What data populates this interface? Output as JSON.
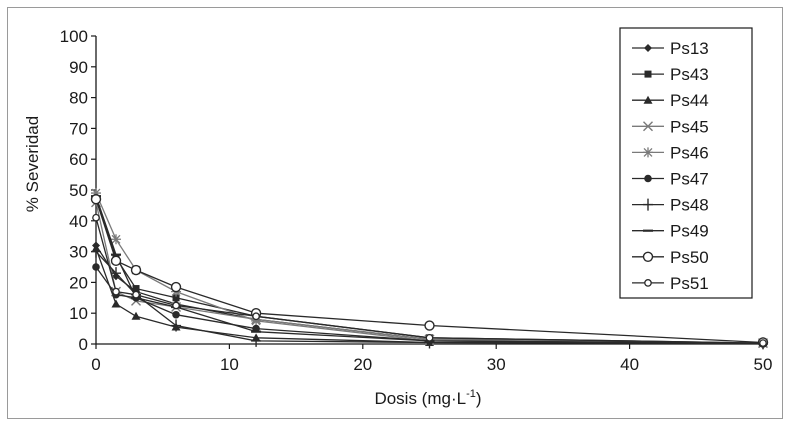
{
  "chart_data": {
    "type": "line",
    "xlabel": "Dosis (mg·L",
    "xlabel_sup": "-1",
    "xlabel_close": ")",
    "ylabel": "% Severidad",
    "xlim": [
      0,
      50
    ],
    "ylim": [
      0,
      100
    ],
    "xticks": [
      0,
      10,
      20,
      30,
      40,
      50
    ],
    "yticks": [
      0,
      10,
      20,
      30,
      40,
      50,
      60,
      70,
      80,
      90,
      100
    ],
    "grid": false,
    "legend_position": "top-right",
    "x": [
      0,
      1.5,
      3,
      6,
      12,
      25,
      50
    ],
    "series": [
      {
        "name": "Ps13",
        "marker": "diamond",
        "color": "#2a2a2a",
        "values": [
          32,
          22,
          17,
          13,
          8,
          1.5,
          0.3
        ]
      },
      {
        "name": "Ps43",
        "marker": "square",
        "color": "#2a2a2a",
        "values": [
          47,
          28,
          18,
          15,
          9,
          2,
          0.3
        ]
      },
      {
        "name": "Ps44",
        "marker": "triangle",
        "color": "#2a2a2a",
        "values": [
          31,
          13,
          9,
          5.5,
          2,
          0.5,
          0.2
        ]
      },
      {
        "name": "Ps45",
        "marker": "x",
        "color": "#7a7a7a",
        "values": [
          46,
          17,
          14,
          12,
          8,
          1.5,
          0.3
        ]
      },
      {
        "name": "Ps46",
        "marker": "star",
        "color": "#7a7a7a",
        "values": [
          49,
          34,
          24,
          17,
          7.5,
          1,
          0.2
        ]
      },
      {
        "name": "Ps47",
        "marker": "circle-filled",
        "color": "#2a2a2a",
        "values": [
          25,
          16,
          15,
          9.5,
          5,
          1,
          0.2
        ]
      },
      {
        "name": "Ps48",
        "marker": "plus",
        "color": "#2a2a2a",
        "values": [
          30,
          23,
          16,
          6,
          1,
          0.5,
          0.2
        ]
      },
      {
        "name": "Ps49",
        "marker": "dash",
        "color": "#2a2a2a",
        "values": [
          48,
          29,
          15,
          12,
          4,
          1,
          0.2
        ]
      },
      {
        "name": "Ps50",
        "marker": "circle-open",
        "color": "#2a2a2a",
        "values": [
          47,
          27,
          24,
          18.5,
          10,
          6,
          0.5
        ]
      },
      {
        "name": "Ps51",
        "marker": "circle-open-small",
        "color": "#2a2a2a",
        "values": [
          41,
          17,
          16,
          12.5,
          9,
          2,
          0.3
        ]
      }
    ]
  }
}
